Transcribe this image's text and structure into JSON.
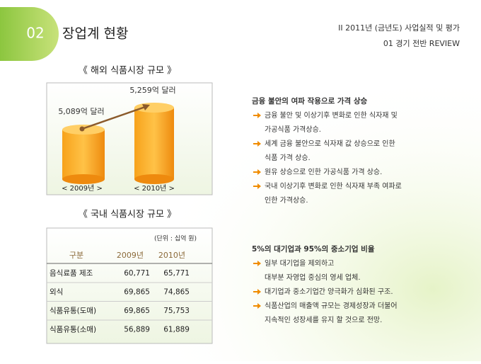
{
  "header": {
    "number": "02",
    "title": "장업계 현황",
    "section": "II  2011년 (금년도) 사업실적 및 평가",
    "subsection": "01  경기 전반 REVIEW"
  },
  "overseas": {
    "title": "《  해외 식품시장 규모  》",
    "items": [
      {
        "value_label": "5,089억 달러",
        "year": "< 2009년 >"
      },
      {
        "value_label": "5,259억 달러",
        "year": "< 2010년 >"
      }
    ]
  },
  "domestic": {
    "title": "《  국내 식품시장 규모  》",
    "table": {
      "unit": "(단위 : 십억 원)",
      "header": [
        "구분",
        "2009년",
        "2010년"
      ],
      "rows": [
        [
          "음식료품 제조",
          "60,771",
          "65,771"
        ],
        [
          "외식",
          "69,865",
          "74,865"
        ],
        [
          "식품유통(도매)",
          "69,865",
          "75,753"
        ],
        [
          "식품유통(소매)",
          "56,889",
          "61,889"
        ]
      ]
    }
  },
  "notes": [
    {
      "heading": "금융 불안의 여파 작용으로 가격 상승",
      "bullets": [
        [
          "금융 불안 및 이상기후 변화로 인한 식자재 및",
          "가공식품 가격상승."
        ],
        [
          "세계 금융 불안으로 식자재 값 상승으로 인한",
          "식품 가격 상승."
        ],
        [
          "원유 상승으로 인한 가공식품 가격 상승."
        ],
        [
          "국내 이상기후 변화로 인한 식자재 부족 여파로",
          "인한 가격상승."
        ]
      ]
    },
    {
      "heading": "5%의 대기업과 95%의 중소기업 비율",
      "bullets": [
        [
          "일부 대기업을 제외하고",
          "대부분 자영업 중심의 영세 업체."
        ],
        [
          "대기업과 중소기업간 양극화가 심화된 구조."
        ],
        [
          "식품산업의 매출액 규모는 경제성장과 더불어",
          "지속적인 성장세를 유지 할 것으로 전망."
        ]
      ]
    }
  ]
}
